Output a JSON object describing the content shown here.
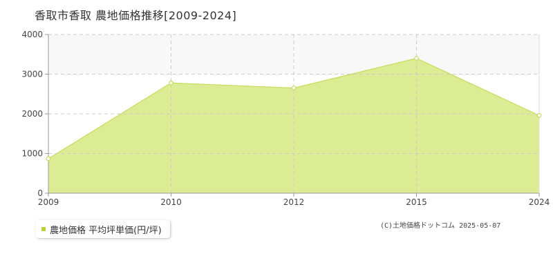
{
  "chart_data": {
    "type": "area",
    "title": "香取市香取 農地価格推移[2009-2024]",
    "x": [
      2009,
      2010,
      2012,
      2015,
      2024
    ],
    "xticks": [
      2009,
      2010,
      2012,
      2015,
      2024
    ],
    "series": [
      {
        "name": "農地価格 平均坪単価(円/坪)",
        "values": [
          870,
          2780,
          2650,
          3400,
          1960
        ]
      }
    ],
    "xlabel": "",
    "ylabel": "",
    "ylim": [
      0,
      4000
    ],
    "yticks": [
      0,
      1000,
      2000,
      3000,
      4000
    ],
    "grid": true,
    "legend": "bottom-left",
    "x_spacing": "categorical"
  },
  "legend": {
    "label": "農地価格 平均坪単価(円/坪)"
  },
  "copyright": "(C)土地価格ドットコム 2025-05-07",
  "colors": {
    "fill": "#dcec94",
    "line": "#c3dd59",
    "band": "#f8f8f8",
    "grid": "#cccccc",
    "axis": "#999999",
    "marker_fill": "#ffffff",
    "legend_swatch": "#b5d334"
  }
}
